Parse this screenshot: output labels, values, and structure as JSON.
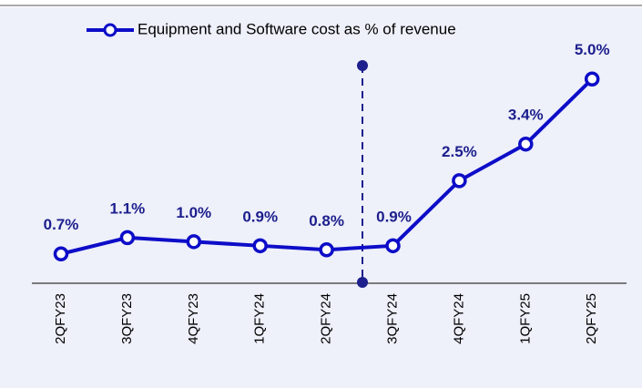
{
  "chart_data": {
    "type": "line",
    "categories": [
      "2QFY23",
      "3QFY23",
      "4QFY23",
      "1QFY24",
      "2QFY24",
      "3QFY24",
      "4QFY24",
      "1QFY25",
      "2QFY25"
    ],
    "series": [
      {
        "name": "Equipment and Software cost as % of revenue",
        "color": "#0d0dc8",
        "values": [
          0.7,
          1.1,
          1.0,
          0.9,
          0.8,
          0.9,
          2.5,
          3.4,
          5.0
        ],
        "value_labels": [
          "0.7%",
          "1.1%",
          "1.0%",
          "0.9%",
          "0.8%",
          "0.9%",
          "2.5%",
          "3.4%",
          "5.0%"
        ]
      }
    ],
    "legend": "top"
  }
}
